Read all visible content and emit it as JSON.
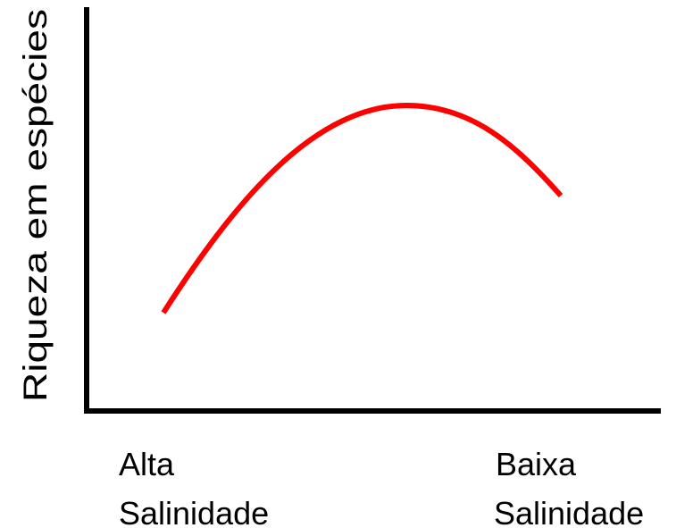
{
  "axis_label": "Riqueza em espécies",
  "x_labels": [
    [
      "Alta",
      "Salinidade"
    ],
    [
      "Baixa",
      "Salinidade"
    ]
  ]
}
